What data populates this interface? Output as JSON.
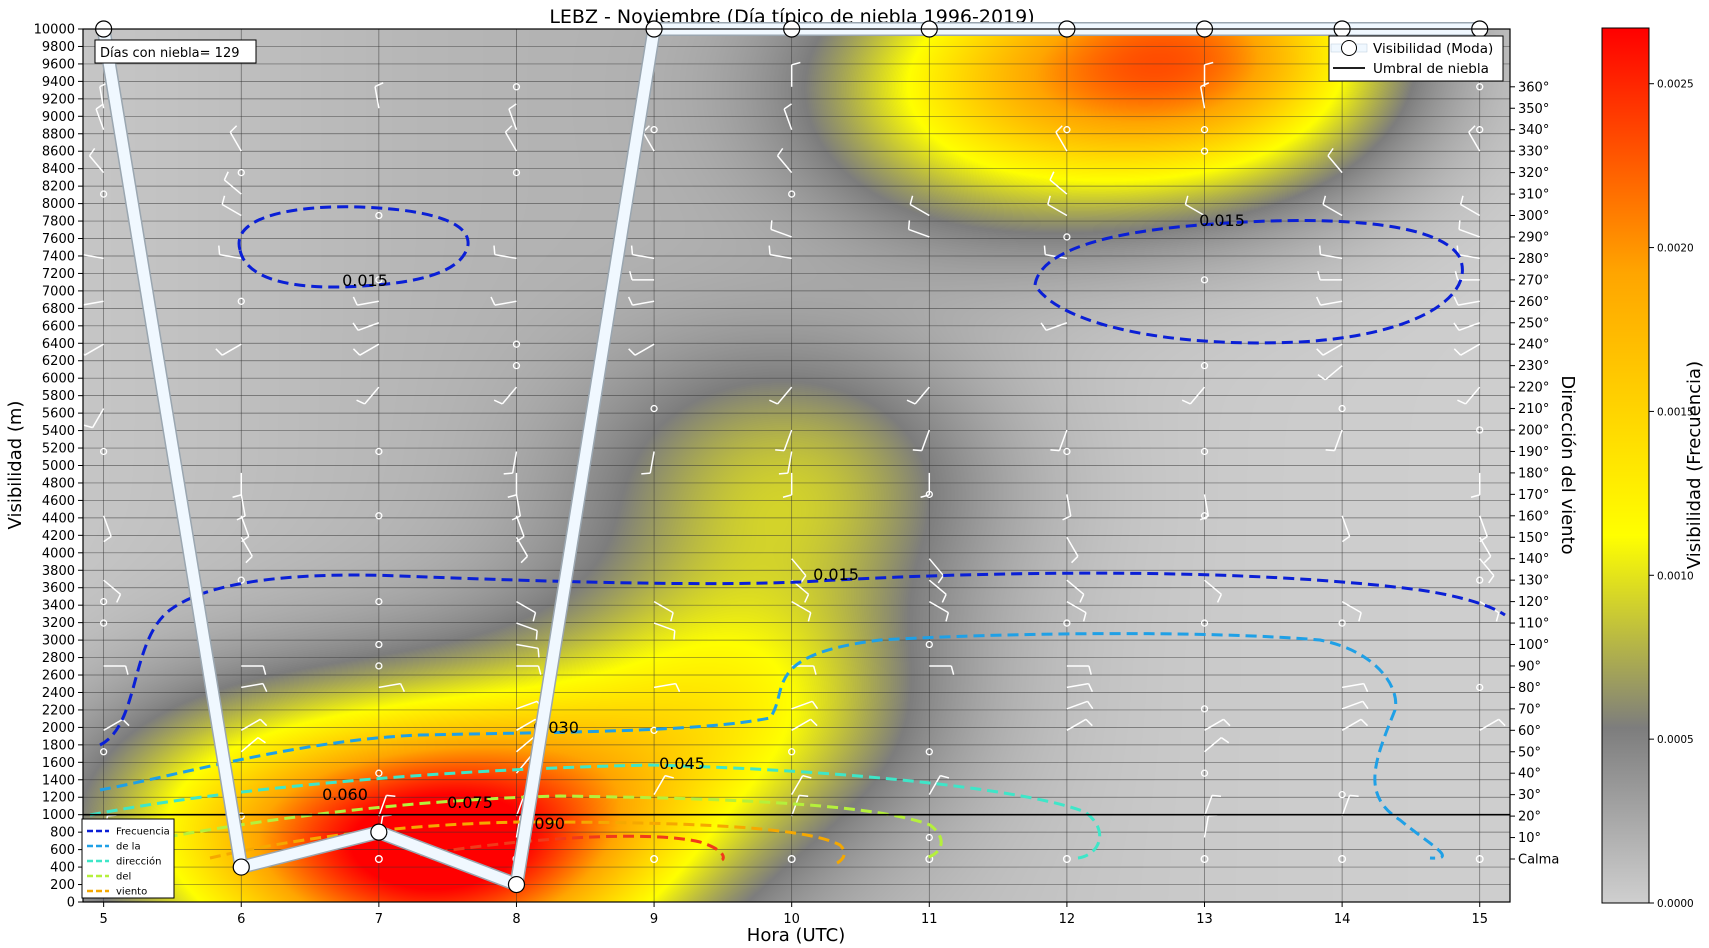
{
  "chart_data": {
    "type": "heatmap",
    "title": "LEBZ - Noviembre (Día típico de niebla 1996-2019)",
    "xlabel": "Hora (UTC)",
    "ylabel": "Visibilidad (m)",
    "y2label": "Dirección del viento",
    "colorbar_label": "Visibilidad (Frecuencia)",
    "info_box": "Días con niebla= 129",
    "x_ticks": [
      5,
      6,
      7,
      8,
      9,
      10,
      11,
      12,
      13,
      14,
      15
    ],
    "xlim": [
      4.85,
      15.22
    ],
    "ylim": [
      0,
      10000
    ],
    "y_ticks": [
      0,
      200,
      400,
      600,
      800,
      1000,
      1200,
      1400,
      1600,
      1800,
      2000,
      2200,
      2400,
      2600,
      2800,
      3000,
      3200,
      3400,
      3600,
      3800,
      4000,
      4200,
      4400,
      4600,
      4800,
      5000,
      5200,
      5400,
      5600,
      5800,
      6000,
      6200,
      6400,
      6600,
      6800,
      7000,
      7200,
      7400,
      7600,
      7800,
      8000,
      8200,
      8400,
      8600,
      8800,
      9000,
      9200,
      9400,
      9600,
      9800,
      10000
    ],
    "y2_ticks": [
      "Calma",
      "10°",
      "20°",
      "30°",
      "40°",
      "50°",
      "60°",
      "70°",
      "80°",
      "90°",
      "100°",
      "110°",
      "120°",
      "130°",
      "140°",
      "150°",
      "160°",
      "170°",
      "180°",
      "190°",
      "200°",
      "210°",
      "220°",
      "230°",
      "240°",
      "250°",
      "260°",
      "270°",
      "280°",
      "290°",
      "300°",
      "310°",
      "320°",
      "330°",
      "340°",
      "350°",
      "360°"
    ],
    "colorbar_ticks": [
      "0.0000",
      "0.0005",
      "0.0010",
      "0.0015",
      "0.0020",
      "0.0025"
    ],
    "colorbar_range": [
      0,
      0.00267
    ],
    "colorbar_colors": [
      "#cfcfcf",
      "#7d7d7d",
      "#ffff00",
      "#ffa500",
      "#ff0000"
    ],
    "fog_threshold": 1000,
    "series": [
      {
        "name": "Visibilidad (Moda)",
        "x": [
          5,
          6,
          7,
          8,
          9,
          10,
          11,
          12,
          13,
          14,
          15
        ],
        "values": [
          10000,
          400,
          800,
          200,
          10000,
          10000,
          10000,
          10000,
          10000,
          10000,
          10000
        ]
      },
      {
        "name": "Umbral de niebla",
        "values": [
          1000
        ]
      }
    ],
    "frequency_legend": [
      "Frecuencia",
      "de  la",
      "dirección",
      "del",
      "viento"
    ],
    "contour_labels": [
      "0.015",
      "0.015",
      "0.015",
      "0.015",
      "0.030",
      "0.045",
      "0.060",
      "0.075",
      "0.090"
    ],
    "contour_colors": [
      "#0a1fd6",
      "#1fa0e6",
      "#3ee6c8",
      "#b5f03c",
      "#f5a800",
      "#f03a1a"
    ],
    "heatmap_blobs": [
      {
        "x": 7.3,
        "y": 500,
        "amp": 0.0018
      },
      {
        "x": 8.2,
        "y": 1000,
        "amp": 0.0011
      },
      {
        "x": 6.0,
        "y": 900,
        "amp": 0.0009
      },
      {
        "x": 9.6,
        "y": 2300,
        "amp": 0.0009
      },
      {
        "x": 10.0,
        "y": 4800,
        "amp": 0.0007
      },
      {
        "x": 13.0,
        "y": 9700,
        "amp": 0.0019
      },
      {
        "x": 11.5,
        "y": 9300,
        "amp": 0.0011
      }
    ]
  }
}
